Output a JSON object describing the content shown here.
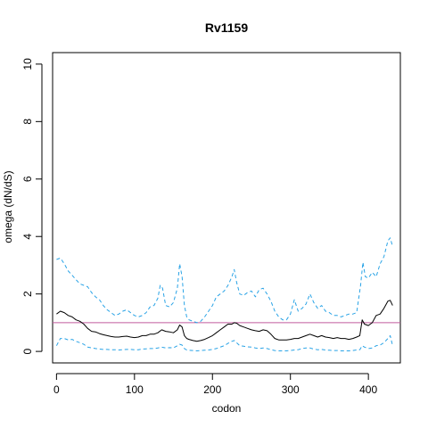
{
  "chart_data": {
    "type": "line",
    "title": "Rv1159",
    "xlabel": "codon",
    "ylabel": "omega (dN/dS)",
    "xlim": [
      -5,
      441
    ],
    "ylim": [
      -0.4,
      10.4
    ],
    "x_ticks": [
      0,
      100,
      200,
      300,
      400
    ],
    "y_ticks": [
      0,
      2,
      4,
      6,
      8,
      10
    ],
    "reference_line": {
      "y": 1,
      "color": "#c05a9e"
    },
    "colors": {
      "mean": "#000000",
      "ci": "#29a3e6"
    },
    "grid": false,
    "series": [
      {
        "style": "solid",
        "x": [
          0,
          5,
          10,
          15,
          20,
          25,
          30,
          35,
          40,
          45,
          50,
          55,
          60,
          65,
          70,
          75,
          80,
          85,
          90,
          95,
          100,
          105,
          110,
          115,
          120,
          125,
          130,
          135,
          140,
          145,
          150,
          155,
          158,
          161,
          164,
          167,
          170,
          175,
          180,
          185,
          190,
          195,
          200,
          205,
          210,
          215,
          220,
          225,
          228,
          231,
          235,
          240,
          245,
          250,
          255,
          260,
          265,
          270,
          275,
          280,
          285,
          290,
          295,
          300,
          305,
          310,
          315,
          320,
          325,
          330,
          335,
          340,
          345,
          350,
          355,
          360,
          365,
          370,
          375,
          380,
          385,
          389,
          392,
          395,
          400,
          405,
          410,
          415,
          420,
          425,
          428,
          431
        ],
        "values": [
          1.3,
          1.4,
          1.35,
          1.25,
          1.2,
          1.1,
          1.05,
          0.95,
          0.8,
          0.7,
          0.68,
          0.62,
          0.58,
          0.55,
          0.52,
          0.5,
          0.5,
          0.52,
          0.53,
          0.5,
          0.48,
          0.5,
          0.55,
          0.55,
          0.6,
          0.6,
          0.65,
          0.75,
          0.7,
          0.68,
          0.65,
          0.75,
          0.92,
          0.85,
          0.55,
          0.45,
          0.42,
          0.38,
          0.35,
          0.38,
          0.42,
          0.48,
          0.55,
          0.65,
          0.75,
          0.85,
          0.95,
          0.95,
          1.0,
          0.98,
          0.9,
          0.85,
          0.8,
          0.75,
          0.72,
          0.7,
          0.75,
          0.72,
          0.6,
          0.45,
          0.4,
          0.4,
          0.4,
          0.42,
          0.45,
          0.45,
          0.5,
          0.55,
          0.6,
          0.55,
          0.5,
          0.55,
          0.5,
          0.48,
          0.45,
          0.48,
          0.45,
          0.45,
          0.42,
          0.45,
          0.5,
          0.55,
          1.1,
          0.95,
          0.9,
          1.0,
          1.25,
          1.3,
          1.5,
          1.75,
          1.78,
          1.6
        ]
      },
      {
        "style": "dashed",
        "x": [
          0,
          5,
          10,
          15,
          20,
          25,
          30,
          35,
          40,
          45,
          50,
          55,
          60,
          65,
          70,
          75,
          80,
          85,
          90,
          95,
          100,
          105,
          110,
          115,
          120,
          125,
          130,
          133,
          136,
          140,
          145,
          150,
          155,
          158,
          161,
          164,
          167,
          170,
          175,
          180,
          185,
          190,
          195,
          200,
          205,
          210,
          215,
          220,
          225,
          228,
          231,
          235,
          240,
          245,
          250,
          255,
          260,
          265,
          270,
          275,
          280,
          285,
          290,
          295,
          300,
          305,
          310,
          315,
          320,
          325,
          330,
          335,
          340,
          345,
          350,
          355,
          360,
          365,
          370,
          375,
          380,
          385,
          390,
          393,
          396,
          400,
          405,
          410,
          415,
          420,
          425,
          428,
          431
        ],
        "values": [
          3.2,
          3.25,
          3.05,
          2.8,
          2.65,
          2.5,
          2.35,
          2.3,
          2.25,
          2.05,
          1.9,
          1.8,
          1.6,
          1.45,
          1.35,
          1.25,
          1.3,
          1.4,
          1.45,
          1.35,
          1.25,
          1.2,
          1.25,
          1.35,
          1.55,
          1.6,
          1.85,
          2.3,
          2.2,
          1.6,
          1.55,
          1.7,
          2.2,
          3.05,
          2.6,
          1.6,
          1.2,
          1.1,
          1.05,
          1.0,
          1.05,
          1.2,
          1.4,
          1.6,
          1.9,
          2.0,
          2.1,
          2.3,
          2.6,
          2.85,
          2.4,
          2.0,
          1.95,
          2.05,
          2.1,
          1.9,
          2.15,
          2.2,
          2.0,
          1.75,
          1.4,
          1.2,
          1.1,
          1.1,
          1.3,
          1.8,
          1.4,
          1.5,
          1.65,
          2.0,
          1.7,
          1.5,
          1.6,
          1.4,
          1.35,
          1.25,
          1.25,
          1.2,
          1.25,
          1.3,
          1.3,
          1.35,
          2.3,
          3.1,
          2.6,
          2.55,
          2.75,
          2.6,
          3.05,
          3.3,
          3.85,
          3.95,
          3.65
        ]
      },
      {
        "style": "dashed",
        "x": [
          0,
          5,
          10,
          15,
          20,
          25,
          30,
          35,
          40,
          45,
          50,
          55,
          60,
          65,
          70,
          75,
          80,
          85,
          90,
          95,
          100,
          105,
          110,
          115,
          120,
          125,
          130,
          135,
          140,
          145,
          150,
          155,
          158,
          161,
          164,
          167,
          170,
          175,
          180,
          185,
          190,
          195,
          200,
          205,
          210,
          215,
          220,
          225,
          228,
          231,
          235,
          240,
          245,
          250,
          255,
          260,
          265,
          270,
          275,
          280,
          285,
          290,
          295,
          300,
          305,
          310,
          315,
          320,
          325,
          330,
          335,
          340,
          345,
          350,
          355,
          360,
          365,
          370,
          375,
          380,
          385,
          389,
          392,
          395,
          400,
          405,
          410,
          415,
          420,
          425,
          428,
          431
        ],
        "values": [
          0.2,
          0.45,
          0.45,
          0.4,
          0.42,
          0.35,
          0.3,
          0.25,
          0.15,
          0.12,
          0.1,
          0.08,
          0.07,
          0.07,
          0.06,
          0.06,
          0.05,
          0.06,
          0.07,
          0.07,
          0.06,
          0.06,
          0.08,
          0.09,
          0.1,
          0.1,
          0.12,
          0.15,
          0.12,
          0.13,
          0.12,
          0.2,
          0.25,
          0.22,
          0.1,
          0.05,
          0.04,
          0.03,
          0.02,
          0.03,
          0.04,
          0.05,
          0.07,
          0.1,
          0.15,
          0.2,
          0.28,
          0.35,
          0.38,
          0.3,
          0.2,
          0.18,
          0.16,
          0.15,
          0.12,
          0.1,
          0.12,
          0.1,
          0.06,
          0.03,
          0.02,
          0.02,
          0.02,
          0.03,
          0.05,
          0.06,
          0.1,
          0.12,
          0.12,
          0.08,
          0.06,
          0.07,
          0.05,
          0.04,
          0.03,
          0.03,
          0.02,
          0.02,
          0.02,
          0.03,
          0.05,
          0.06,
          0.2,
          0.15,
          0.1,
          0.12,
          0.2,
          0.22,
          0.3,
          0.45,
          0.55,
          0.2
        ]
      }
    ]
  }
}
